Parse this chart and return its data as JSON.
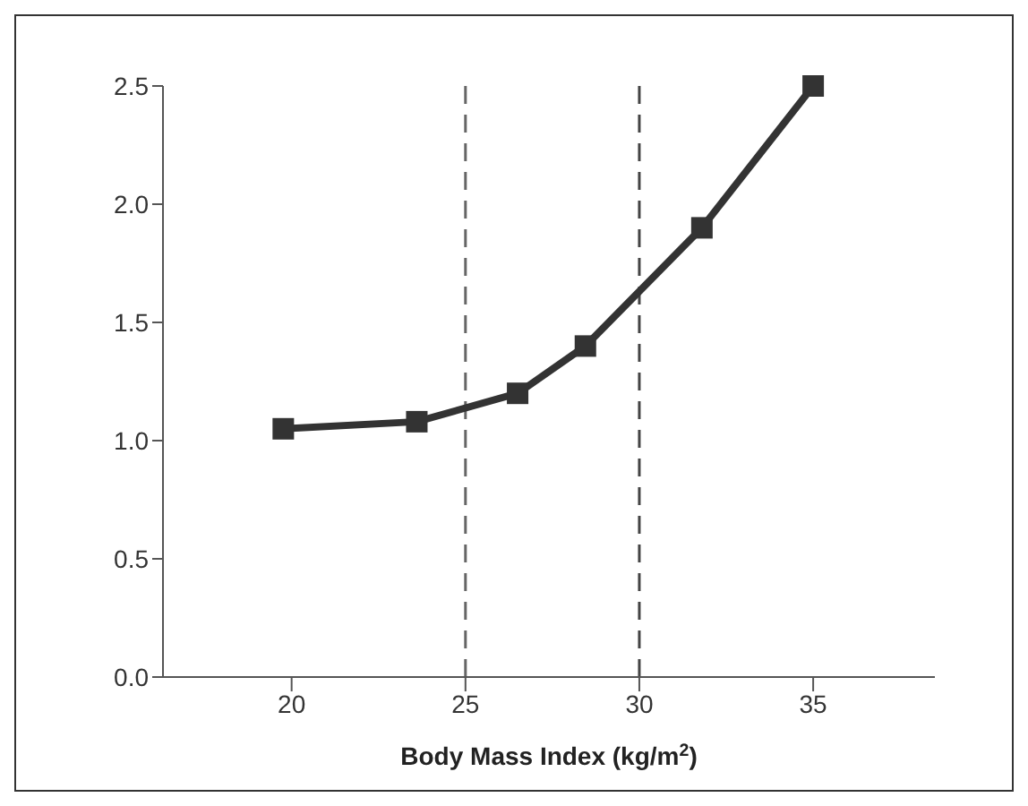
{
  "chart_data": {
    "type": "line",
    "xlabel": "Body Mass Index (kg/m$^{2}$)",
    "x": [
      19.76,
      23.6,
      26.5,
      28.45,
      31.8,
      35
    ],
    "series": [
      {
        "color": "#333333",
        "values": [
          1.05,
          1.08,
          1.2,
          1.4,
          1.9,
          2.5
        ]
      }
    ],
    "xlim": [
      16.3,
      38.5
    ],
    "xticks": [
      20,
      25,
      30,
      35
    ],
    "ylim": [
      0,
      2.5
    ],
    "yticks": [
      {
        "value": 0,
        "label": "0.0"
      },
      {
        "value": 0.5,
        "label": "0.5"
      },
      {
        "value": 1,
        "label": "1.0"
      },
      {
        "value": 1.5,
        "label": "1.5"
      },
      {
        "value": 2,
        "label": "2.0"
      },
      {
        "value": 2.5,
        "label": "2.5"
      }
    ],
    "ref_lines": [
      {
        "axis": "x",
        "value": 25,
        "color": "#666666",
        "line_style": "dashed"
      },
      {
        "axis": "x",
        "value": 30,
        "color": "#444444",
        "line_style": "dashed"
      }
    ],
    "marker": "square",
    "line_style": "solid"
  }
}
